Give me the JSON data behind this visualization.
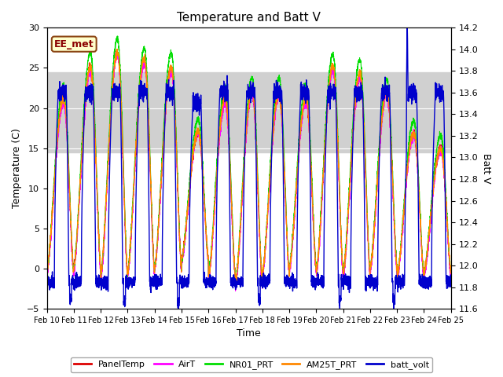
{
  "title": "Temperature and Batt V",
  "xlabel": "Time",
  "ylabel_left": "Temperature (C)",
  "ylabel_right": "Batt V",
  "ylim_left": [
    -5,
    30
  ],
  "ylim_right": [
    11.6,
    14.2
  ],
  "yticks_left": [
    -5,
    0,
    5,
    10,
    15,
    20,
    25,
    30
  ],
  "yticks_right": [
    11.6,
    11.8,
    12.0,
    12.2,
    12.4,
    12.6,
    12.8,
    13.0,
    13.2,
    13.4,
    13.6,
    13.8,
    14.0,
    14.2
  ],
  "xtick_labels": [
    "Feb 10",
    "Feb 11",
    "Feb 12",
    "Feb 13",
    "Feb 14",
    "Feb 15",
    "Feb 16",
    "Feb 17",
    "Feb 18",
    "Feb 19",
    "Feb 20",
    "Feb 21",
    "Feb 22",
    "Feb 23",
    "Feb 24",
    "Feb 25"
  ],
  "station_label": "EE_met",
  "gray_band": [
    14.5,
    24.5
  ],
  "legend_entries": [
    "PanelTemp",
    "AirT",
    "NR01_PRT",
    "AM25T_PRT",
    "batt_volt"
  ],
  "colors": {
    "PanelTemp": "#dd0000",
    "AirT": "#ff00ff",
    "NR01_PRT": "#00dd00",
    "AM25T_PRT": "#ff8800",
    "batt_volt": "#0000cc"
  },
  "background_color": "#ffffff"
}
